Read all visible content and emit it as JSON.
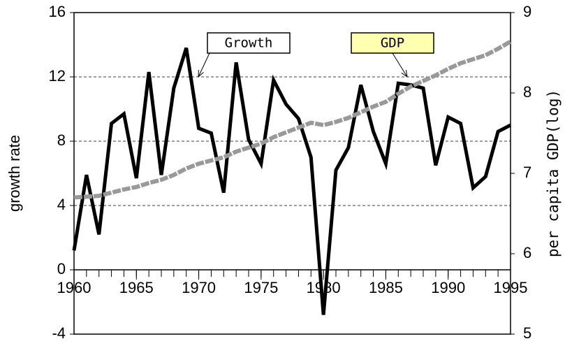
{
  "chart_data": {
    "type": "line",
    "ylabel": "growth rate",
    "y2label": "per capita GDP(log)",
    "x": [
      1960,
      1961,
      1962,
      1963,
      1964,
      1965,
      1966,
      1967,
      1968,
      1969,
      1970,
      1971,
      1972,
      1973,
      1974,
      1975,
      1976,
      1977,
      1978,
      1979,
      1980,
      1981,
      1982,
      1983,
      1984,
      1985,
      1986,
      1987,
      1988,
      1989,
      1990,
      1991,
      1992,
      1993,
      1994,
      1995
    ],
    "series": [
      {
        "name": "Growth",
        "color": "#000000",
        "values": [
          1.2,
          5.9,
          2.2,
          9.1,
          9.7,
          5.7,
          12.3,
          5.9,
          11.3,
          13.8,
          8.8,
          8.5,
          4.8,
          12.9,
          8.1,
          6.6,
          11.8,
          10.3,
          9.4,
          7.0,
          -2.8,
          6.2,
          7.6,
          11.5,
          8.6,
          6.6,
          11.6,
          11.5,
          11.3,
          6.5,
          9.5,
          9.1,
          5.1,
          5.8,
          8.6,
          9.0
        ]
      },
      {
        "name": "GDP",
        "color": "#999999",
        "axis": "y2",
        "values": [
          6.7,
          6.71,
          6.72,
          6.76,
          6.8,
          6.83,
          6.88,
          6.92,
          6.98,
          7.06,
          7.12,
          7.16,
          7.2,
          7.27,
          7.32,
          7.37,
          7.45,
          7.51,
          7.57,
          7.63,
          7.6,
          7.64,
          7.69,
          7.76,
          7.83,
          7.89,
          7.99,
          8.08,
          8.15,
          8.22,
          8.3,
          8.37,
          8.42,
          8.47,
          8.55,
          8.64
        ]
      }
    ],
    "xlim": [
      1960,
      1995
    ],
    "xticks": [
      1960,
      1965,
      1970,
      1975,
      1980,
      1985,
      1990,
      1995
    ],
    "ylim": [
      -4,
      16
    ],
    "yticks": [
      -4,
      0,
      4,
      8,
      12,
      16
    ],
    "y2lim": [
      5,
      9
    ],
    "y2ticks": [
      5,
      6,
      7,
      8,
      9
    ],
    "grid": true
  }
}
